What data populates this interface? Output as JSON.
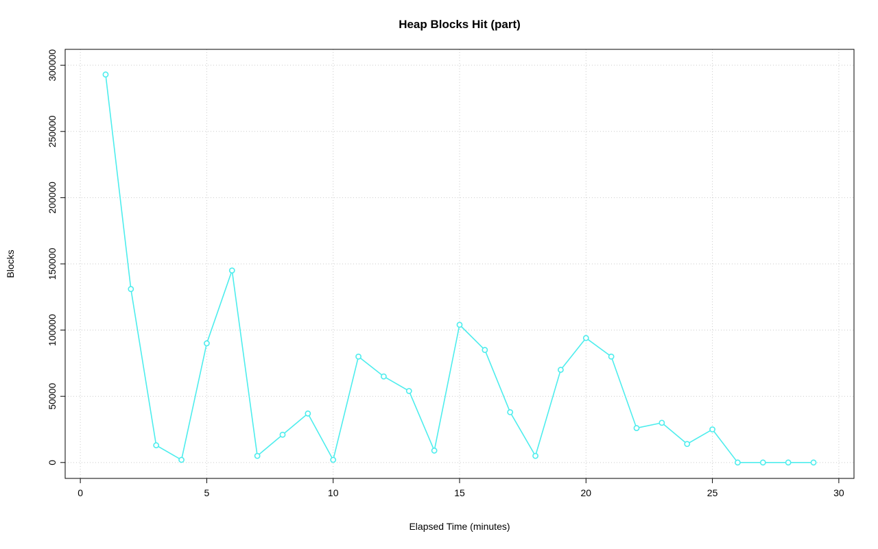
{
  "chart_data": {
    "type": "line",
    "title": "Heap Blocks Hit (part)",
    "xlabel": "Elapsed Time (minutes)",
    "ylabel": "Blocks",
    "x": [
      1,
      2,
      3,
      4,
      5,
      6,
      7,
      8,
      9,
      10,
      11,
      12,
      13,
      14,
      15,
      16,
      17,
      18,
      19,
      20,
      21,
      22,
      23,
      24,
      25,
      26,
      27,
      28,
      29
    ],
    "values": [
      293000,
      131000,
      13000,
      2000,
      90000,
      145000,
      5000,
      21000,
      37000,
      2000,
      80000,
      65000,
      54000,
      9000,
      104000,
      85000,
      38000,
      5000,
      70000,
      94000,
      80000,
      26000,
      30000,
      14000,
      25000,
      0,
      0,
      0,
      0
    ],
    "x_ticks": [
      0,
      5,
      10,
      15,
      20,
      25,
      30
    ],
    "y_ticks": [
      0,
      50000,
      100000,
      150000,
      200000,
      250000,
      300000
    ],
    "xlim": [
      0,
      30
    ],
    "ylim": [
      0,
      300000
    ],
    "grid": true,
    "legend": "none",
    "marker": "open-circle",
    "line_color": "#4DEDED",
    "grid_color": "#C9C9C9",
    "axis_color": "#000000",
    "background": "#FFFFFF"
  }
}
